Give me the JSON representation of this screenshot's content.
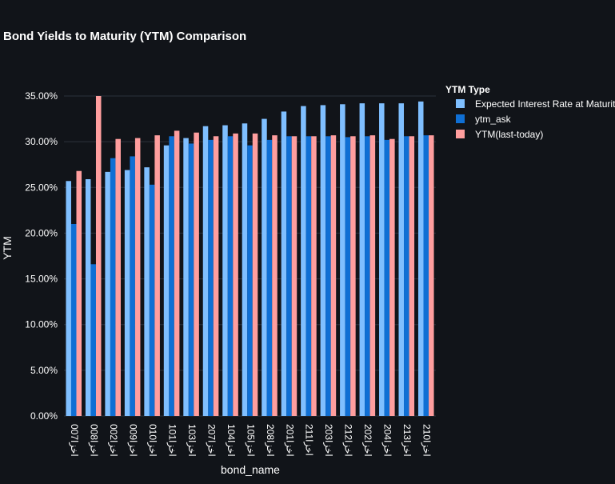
{
  "chart_data": {
    "type": "bar",
    "title": "Bond Yields to Maturity (YTM) Comparison",
    "xlabel": "bond_name",
    "ylabel": "YTM",
    "ylim": [
      0,
      0.35
    ],
    "yticks": [
      0,
      0.05,
      0.1,
      0.15,
      0.2,
      0.25,
      0.3,
      0.35
    ],
    "ytick_labels": [
      "0.00%",
      "5.00%",
      "10.00%",
      "15.00%",
      "20.00%",
      "25.00%",
      "30.00%",
      "35.00%"
    ],
    "grid": true,
    "legend_title": "YTM Type",
    "legend_position": "top-right",
    "categories": [
      "اخزا007",
      "اخزا008",
      "اخزا002",
      "اخزا009",
      "اخزا010",
      "اخزا101",
      "اخزا103",
      "اخزا207",
      "اخزا104",
      "اخزا105",
      "اخزا208",
      "اخزا201",
      "اخزا211",
      "اخزا203",
      "اخزا212",
      "اخزا202",
      "اخزا204",
      "اخزا213",
      "اخزا210"
    ],
    "series": [
      {
        "name": "Expected Interest Rate at Maturity",
        "color": "#7fbfff",
        "values": [
          0.257,
          0.259,
          0.267,
          0.269,
          0.272,
          0.296,
          0.304,
          0.317,
          0.318,
          0.32,
          0.325,
          0.333,
          0.339,
          0.34,
          0.341,
          0.342,
          0.342,
          0.342,
          0.344
        ]
      },
      {
        "name": "ytm_ask",
        "color": "#0f6fd4",
        "values": [
          0.21,
          0.166,
          0.282,
          0.284,
          0.253,
          0.306,
          0.298,
          0.302,
          0.306,
          0.296,
          0.302,
          0.306,
          0.306,
          0.306,
          0.305,
          0.306,
          0.302,
          0.306,
          0.307
        ]
      },
      {
        "name": "YTM(last-today)",
        "color": "#ff9e9e",
        "values": [
          0.268,
          0.35,
          0.303,
          0.304,
          0.307,
          0.312,
          0.31,
          0.306,
          0.309,
          0.309,
          0.307,
          0.306,
          0.306,
          0.307,
          0.306,
          0.307,
          0.303,
          0.306,
          0.307
        ]
      }
    ]
  }
}
